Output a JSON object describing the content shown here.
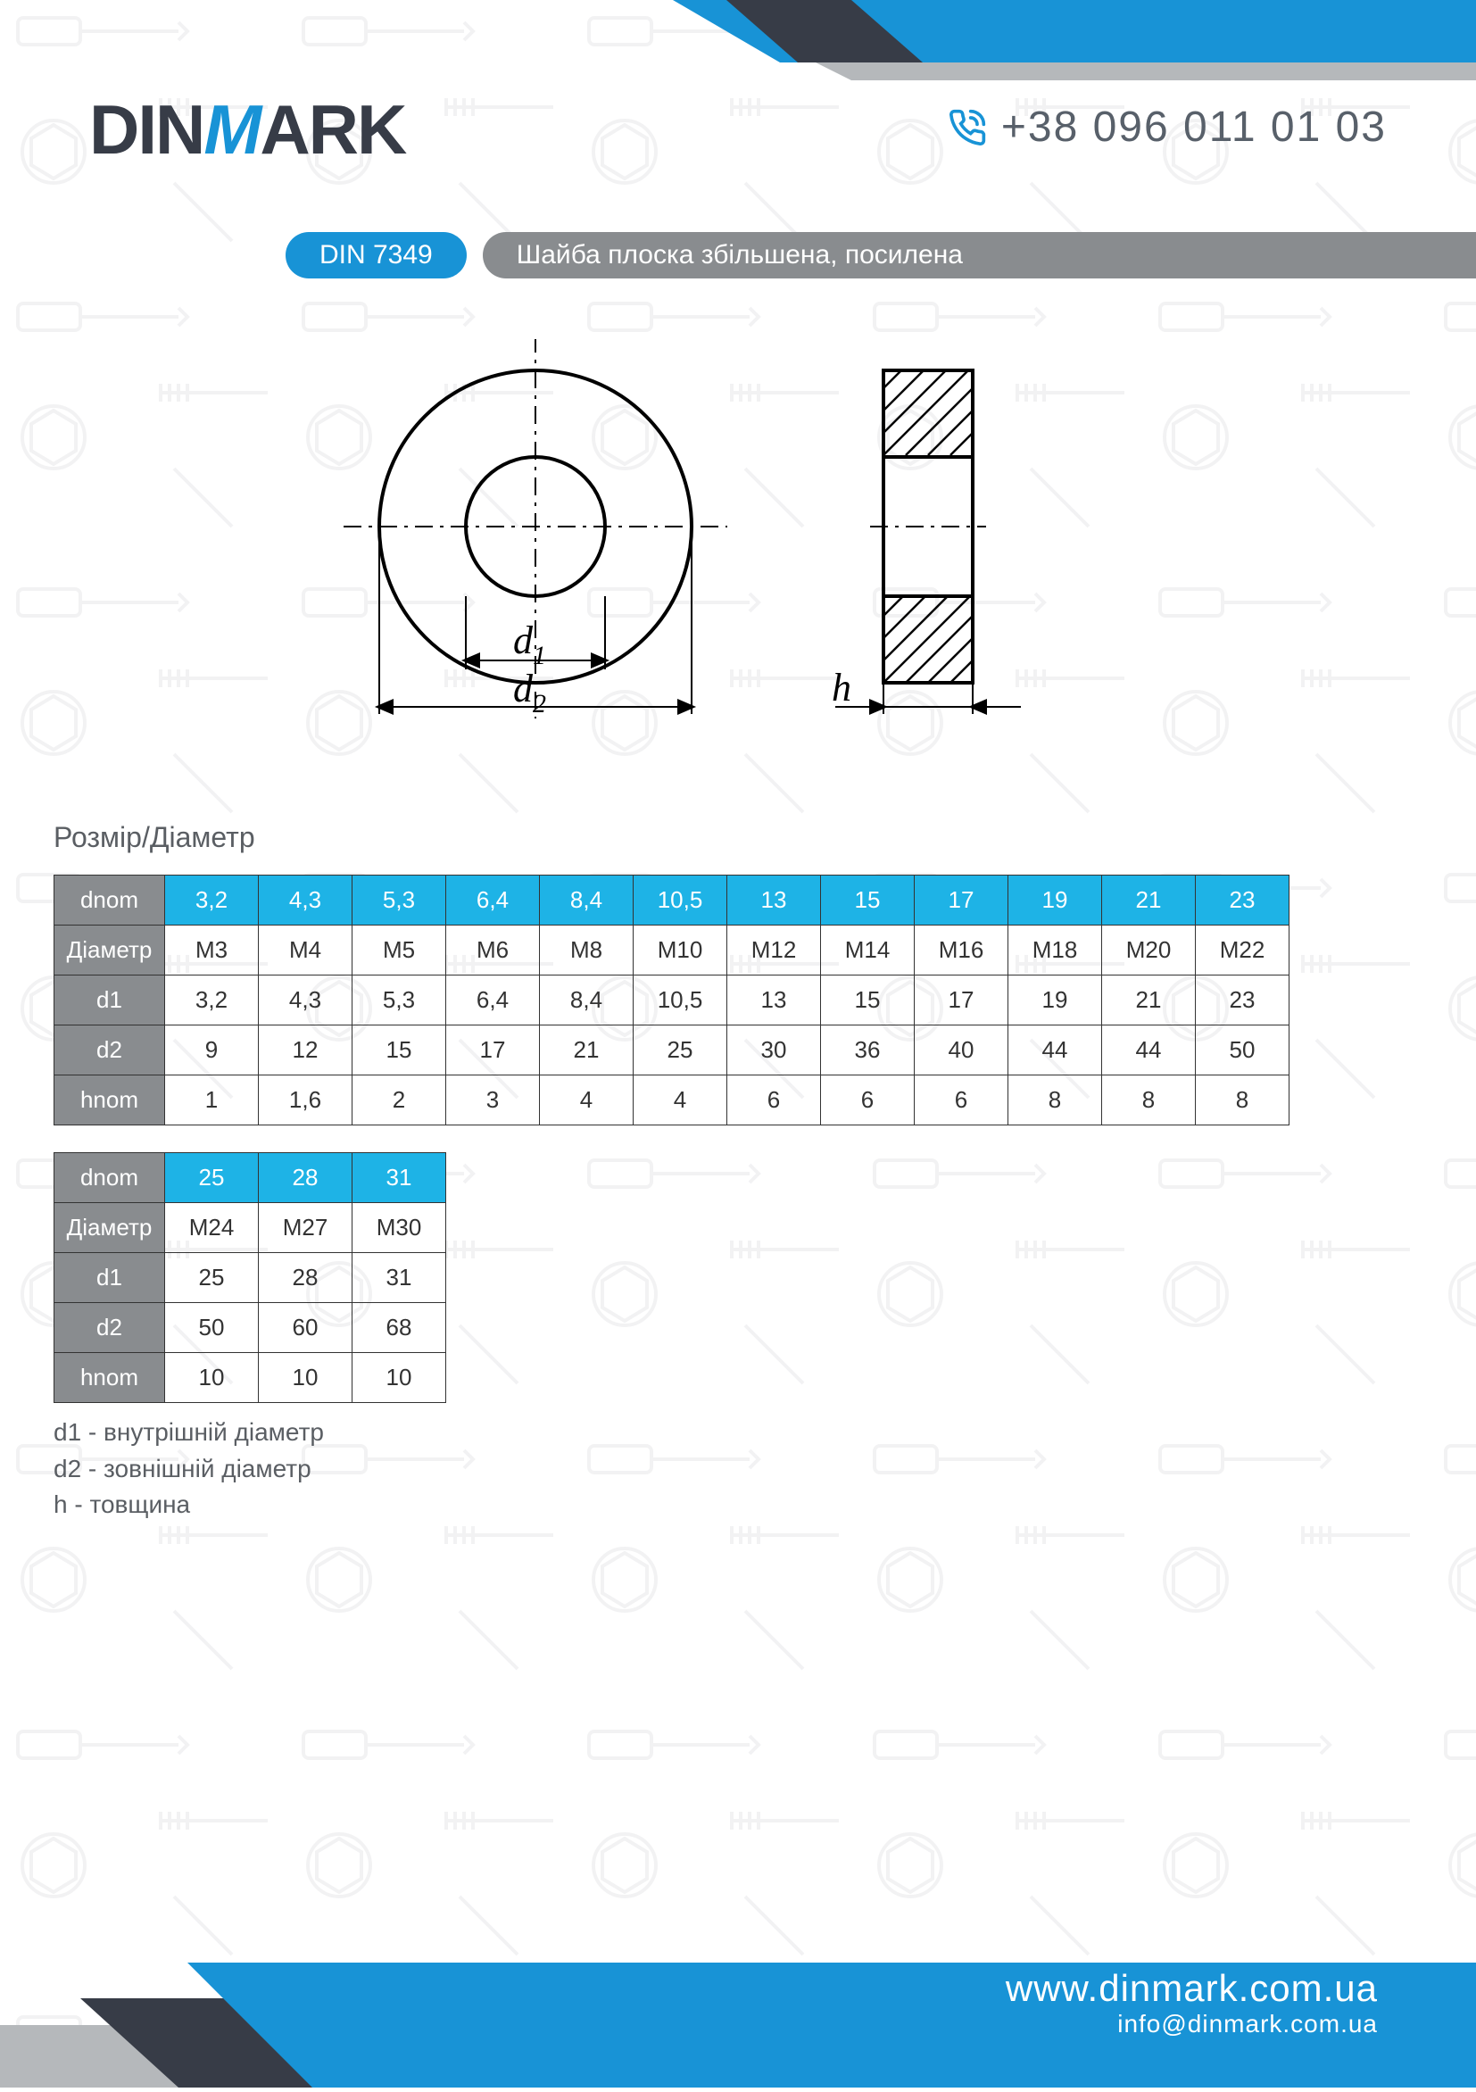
{
  "brand": {
    "part1": "DIN",
    "partM": "M",
    "part2": "ARK"
  },
  "phone": "+38 096 011 01 03",
  "din_code": "DIN 7349",
  "product_title": "Шайба плоска збільшена, посилена",
  "section_heading": "Розмір/Діаметр",
  "diagram_labels": {
    "d1": "d",
    "d1sub": "1",
    "d2": "d",
    "d2sub": "2",
    "h": "h"
  },
  "table1": {
    "row_labels": [
      "dnom",
      "Діаметр",
      "d1",
      "d2",
      "hnom"
    ],
    "rows": [
      [
        "3,2",
        "4,3",
        "5,3",
        "6,4",
        "8,4",
        "10,5",
        "13",
        "15",
        "17",
        "19",
        "21",
        "23"
      ],
      [
        "M3",
        "M4",
        "M5",
        "M6",
        "M8",
        "M10",
        "M12",
        "M14",
        "M16",
        "M18",
        "M20",
        "M22"
      ],
      [
        "3,2",
        "4,3",
        "5,3",
        "6,4",
        "8,4",
        "10,5",
        "13",
        "15",
        "17",
        "19",
        "21",
        "23"
      ],
      [
        "9",
        "12",
        "15",
        "17",
        "21",
        "25",
        "30",
        "36",
        "40",
        "44",
        "44",
        "50"
      ],
      [
        "1",
        "1,6",
        "2",
        "3",
        "4",
        "4",
        "6",
        "6",
        "6",
        "8",
        "8",
        "8"
      ]
    ]
  },
  "table2": {
    "row_labels": [
      "dnom",
      "Діаметр",
      "d1",
      "d2",
      "hnom"
    ],
    "rows": [
      [
        "25",
        "28",
        "31"
      ],
      [
        "M24",
        "M27",
        "M30"
      ],
      [
        "25",
        "28",
        "31"
      ],
      [
        "50",
        "60",
        "68"
      ],
      [
        "10",
        "10",
        "10"
      ]
    ]
  },
  "legend": {
    "l1": "d1 - внутрішній діаметр",
    "l2": "d2 - зовнішній діаметр",
    "l3": "h - товщина"
  },
  "footer": {
    "url": "www.dinmark.com.ua",
    "email": "info@dinmark.com.ua"
  },
  "colors": {
    "accent": "#1893d6",
    "accent_light": "#1eb3e6",
    "gray_pill": "#898c8f",
    "dark": "#373c47"
  }
}
